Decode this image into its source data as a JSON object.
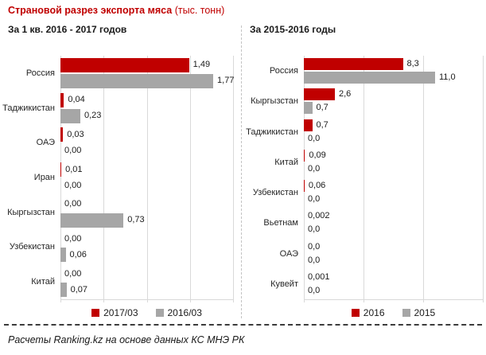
{
  "title": {
    "main": "Страновой  разрез экспорта мяса",
    "unit": " (тыс. тонн)"
  },
  "footer": {
    "text": "Расчеты Ranking.kz на основе данных КС МНЭ РК"
  },
  "colors": {
    "red": "#C00000",
    "gray": "#A6A6A6",
    "grid": "#D9D9D9",
    "title": "#C00000"
  },
  "chart_data": [
    {
      "type": "bar",
      "orientation": "horizontal",
      "title": "За 1 кв. 2016 - 2017 годов",
      "categories": [
        "Россия",
        "Таджикистан",
        "ОАЭ",
        "Иран",
        "Кыргызстан",
        "Узбекистан",
        "Китай"
      ],
      "series": [
        {
          "name": "2017/03",
          "color": "#C00000",
          "values": [
            1.49,
            0.04,
            0.03,
            0.01,
            0.0,
            0.0,
            0.0
          ],
          "labels": [
            "1,49",
            "0,04",
            "0,03",
            "0,01",
            "0,00",
            "0,00",
            "0,00"
          ]
        },
        {
          "name": "2016/03",
          "color": "#A6A6A6",
          "values": [
            1.77,
            0.23,
            0.0,
            0.0,
            0.73,
            0.06,
            0.07
          ],
          "labels": [
            "1,77",
            "0,23",
            "0,00",
            "0,00",
            "0,73",
            "0,06",
            "0,07"
          ]
        }
      ],
      "xlim": [
        0,
        2
      ],
      "gridlines": [
        0,
        0.5,
        1,
        1.5,
        2
      ],
      "grid": true,
      "legend_position": "bottom"
    },
    {
      "type": "bar",
      "orientation": "horizontal",
      "title": "За 2015-2016 годы",
      "categories": [
        "Россия",
        "Кыргызстан",
        "Таджикистан",
        "Китай",
        "Узбекистан",
        "Вьетнам",
        "ОАЭ",
        "Кувейт"
      ],
      "series": [
        {
          "name": "2016",
          "color": "#C00000",
          "values": [
            8.3,
            2.6,
            0.7,
            0.09,
            0.06,
            0.002,
            0.0,
            0.001
          ],
          "labels": [
            "8,3",
            "2,6",
            "0,7",
            "0,09",
            "0,06",
            "0,002",
            "0,0",
            "0,001"
          ]
        },
        {
          "name": "2015",
          "color": "#A6A6A6",
          "values": [
            11.0,
            0.7,
            0.0,
            0.0,
            0.0,
            0.0,
            0.0,
            0.0
          ],
          "labels": [
            "11,0",
            "0,7",
            "0,0",
            "0,0",
            "0,0",
            "0,0",
            "0,0",
            "0,0"
          ]
        }
      ],
      "xlim": [
        0,
        15
      ],
      "gridlines": [
        0,
        5,
        10,
        15
      ],
      "grid": true,
      "legend_position": "bottom"
    }
  ]
}
